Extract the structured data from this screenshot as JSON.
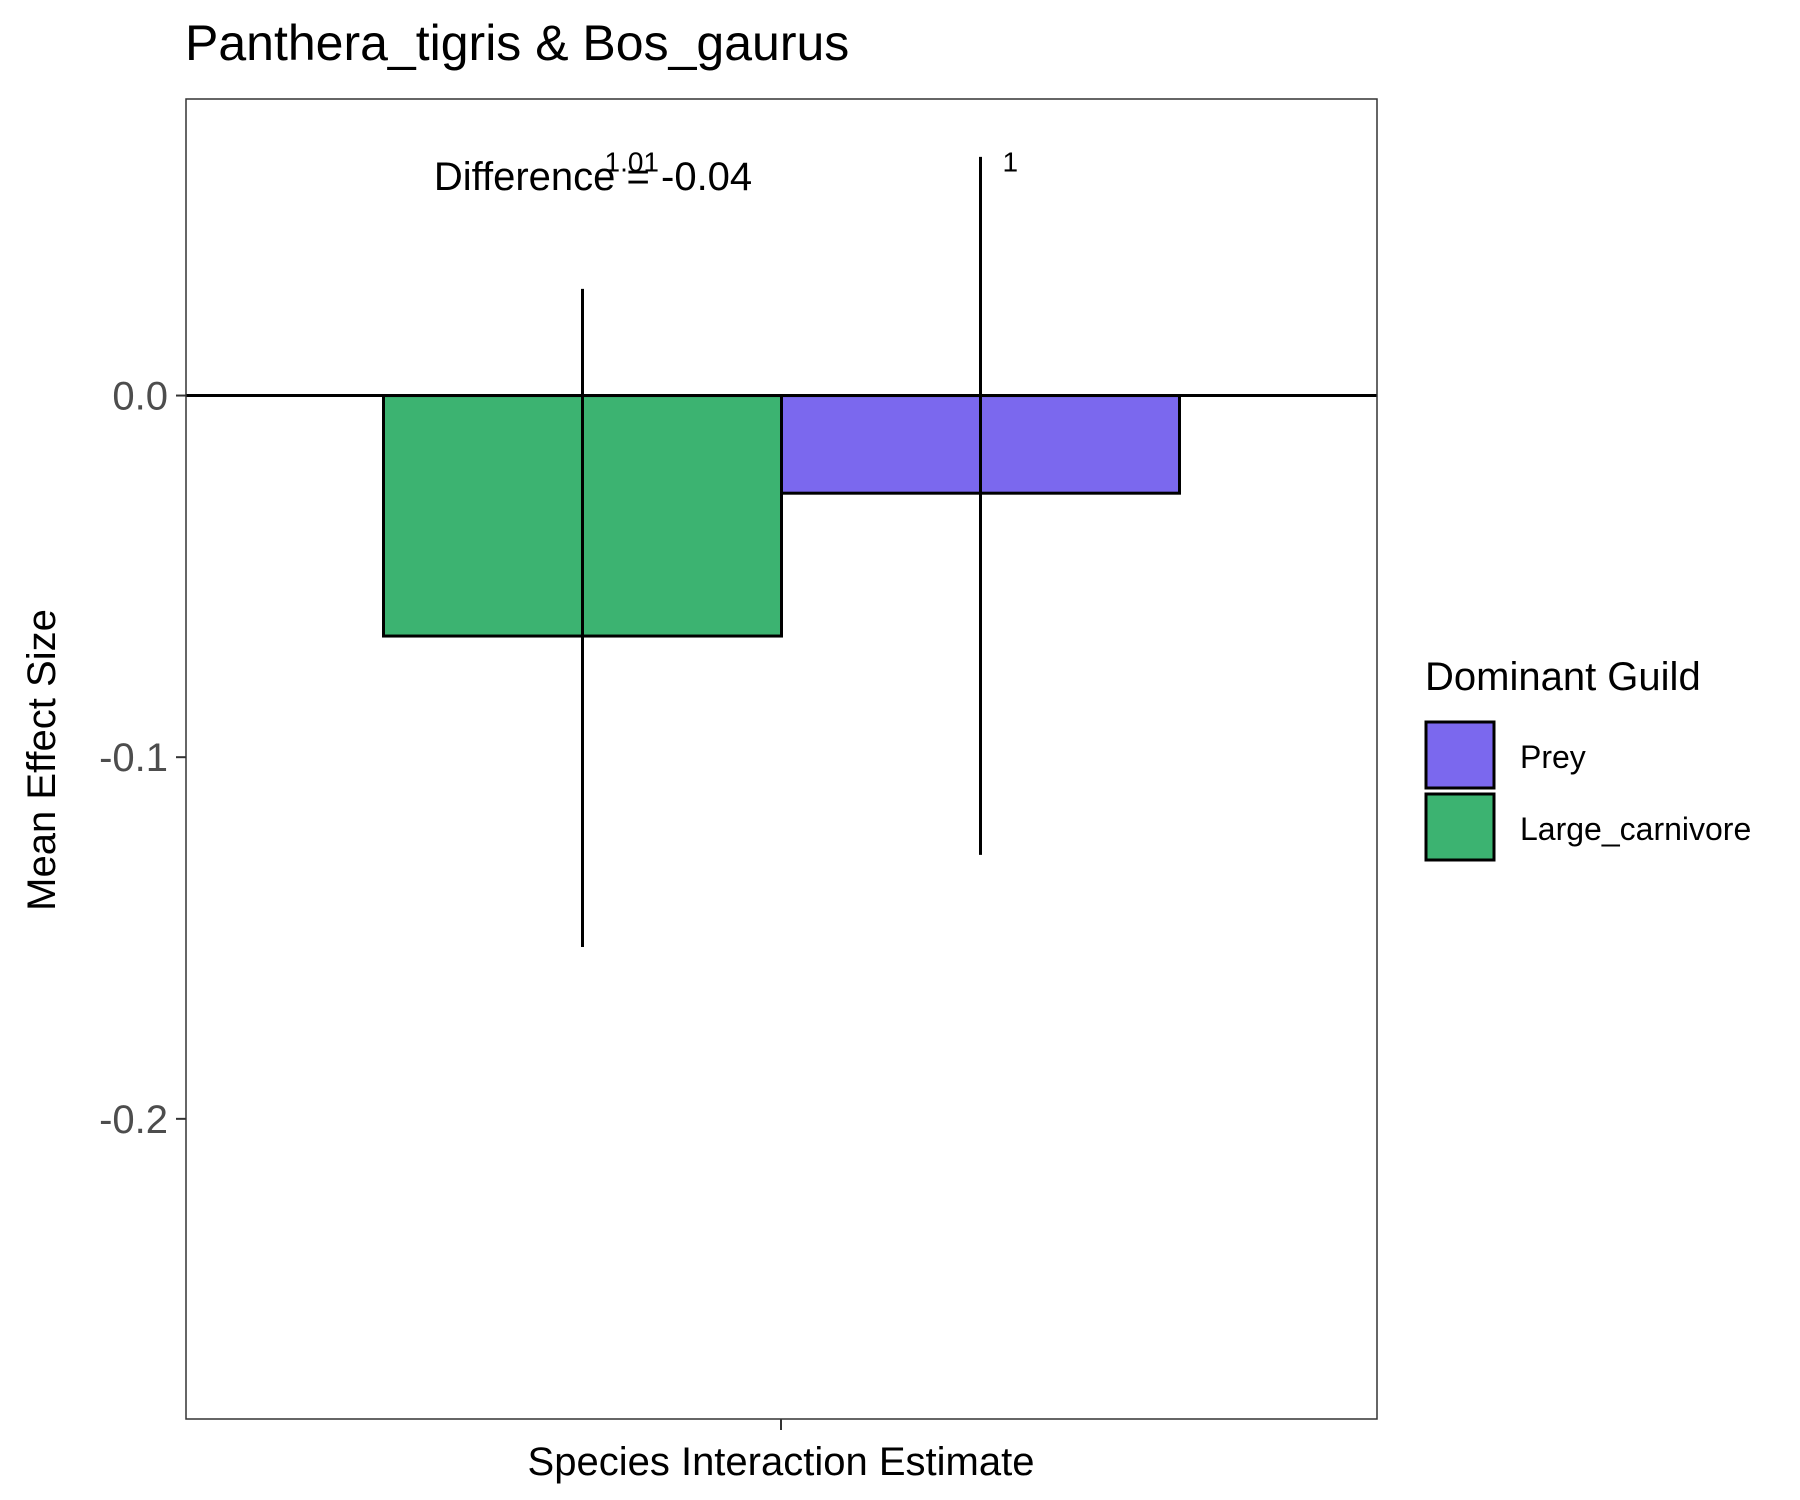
{
  "chart_data": {
    "type": "bar",
    "title": "Panthera_tigris & Bos_gaurus",
    "xlabel": "Species Interaction Estimate",
    "ylabel": "Mean Effect Size",
    "categories": [
      "Species Interaction Estimate"
    ],
    "ylim": [
      -0.283,
      0.082
    ],
    "yticks": [
      0.0,
      -0.1,
      -0.2
    ],
    "ytick_labels": [
      "0.0",
      "-0.1",
      "-0.2"
    ],
    "grid": false,
    "legend": {
      "title": "Dominant Guild",
      "placement": "right",
      "entries": [
        {
          "label": "Prey",
          "color": "#7B68EE"
        },
        {
          "label": "Large_carnivore",
          "color": "#3CB371"
        }
      ]
    },
    "series": [
      {
        "name": "Large_carnivore",
        "value": -0.0665,
        "err_low": -0.1525,
        "err_high": 0.0295,
        "label": "1.01",
        "color": "#3CB371"
      },
      {
        "name": "Prey",
        "value": -0.027,
        "err_low": -0.127,
        "err_high": 0.066,
        "label": "1",
        "color": "#7B68EE"
      }
    ],
    "annotation": "Difference = -0.04"
  }
}
